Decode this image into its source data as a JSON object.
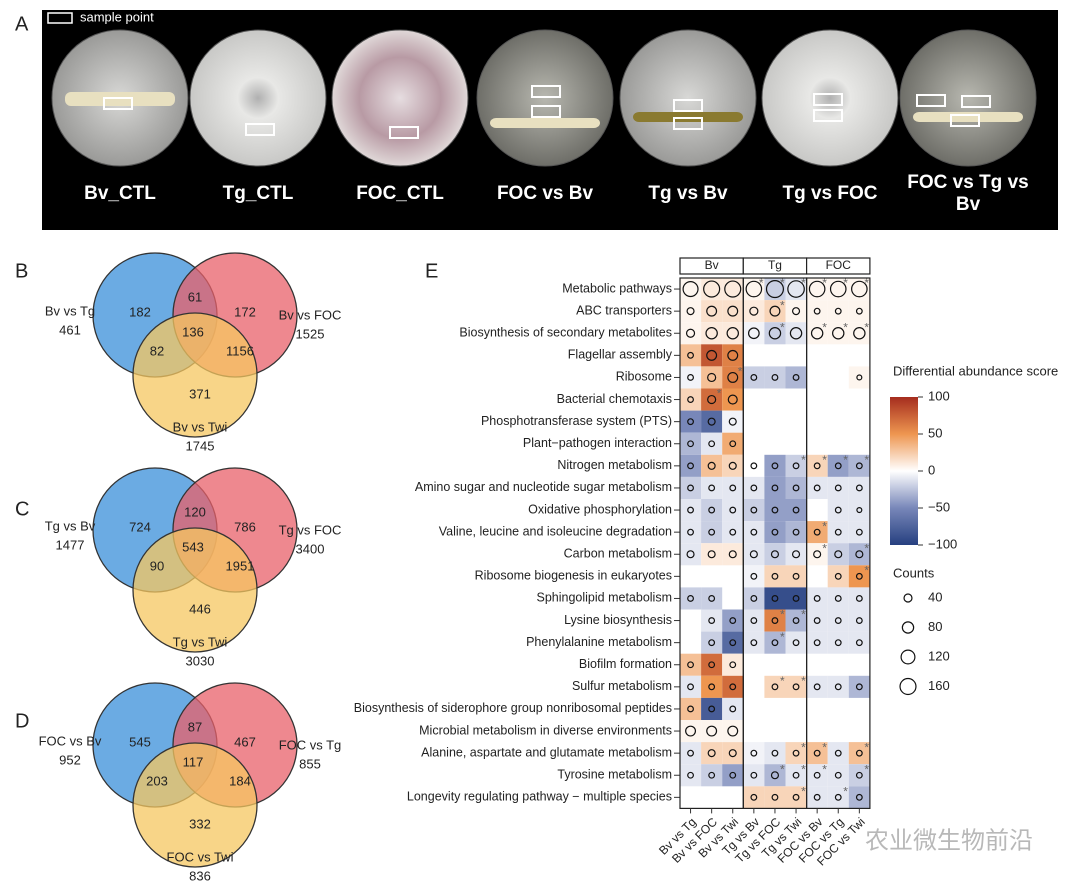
{
  "panel_labels": [
    "A",
    "B",
    "C",
    "D",
    "E"
  ],
  "plates": {
    "legend": "sample point",
    "labels": [
      "Bv_CTL",
      "Tg_CTL",
      "FOC_CTL",
      "FOC vs Bv",
      "Tg vs Bv",
      "Tg vs FOC",
      "FOC vs Tg vs Bv"
    ]
  },
  "venns": [
    {
      "sets": [
        {
          "name": "Bv vs Tg",
          "total": 461
        },
        {
          "name": "Bv vs FOC",
          "total": 1525
        },
        {
          "name": "Bv vs Twi",
          "total": 1745
        }
      ],
      "regions": [
        182,
        61,
        172,
        136,
        82,
        1156,
        371
      ]
    },
    {
      "sets": [
        {
          "name": "Tg vs Bv",
          "total": 1477
        },
        {
          "name": "Tg vs FOC",
          "total": 3400
        },
        {
          "name": "Tg vs Twi",
          "total": 3030
        }
      ],
      "regions": [
        724,
        120,
        786,
        543,
        90,
        1951,
        446
      ]
    },
    {
      "sets": [
        {
          "name": "FOC vs Bv",
          "total": 952
        },
        {
          "name": "FOC vs Tg",
          "total": 855
        },
        {
          "name": "FOC vs Twi",
          "total": 836
        }
      ],
      "regions": [
        545,
        87,
        467,
        117,
        203,
        184,
        332
      ]
    }
  ],
  "heatmap": {
    "groups": [
      "Bv",
      "Tg",
      "FOC"
    ],
    "columns": [
      "Bv vs Tg",
      "Bv vs FOC",
      "Bv vs Twi",
      "Tg vs Bv",
      "Tg vs FOC",
      "Tg vs Twi",
      "FOC vs Bv",
      "FOC vs Tg",
      "FOC vs Twi"
    ],
    "rows": [
      "Metabolic pathways",
      "ABC transporters",
      "Biosynthesis of secondary metabolites",
      "Flagellar assembly",
      "Ribosome",
      "Bacterial chemotaxis",
      "Phosphotransferase system (PTS)",
      "Plant−pathogen interaction",
      "Nitrogen metabolism",
      "Amino sugar and nucleotide sugar metabolism",
      "Oxidative phosphorylation",
      "Valine, leucine and isoleucine degradation",
      "Carbon metabolism",
      "Ribosome biogenesis in eukaryotes",
      "Sphingolipid metabolism",
      "Lysine biosynthesis",
      "Phenylalanine metabolism",
      "Biofilm formation",
      "Sulfur metabolism",
      "Biosynthesis of siderophore group nonribosomal peptides",
      "Microbial metabolism in diverse environments",
      "Alanine, aspartate and glutamate metabolism",
      "Tyrosine metabolism",
      "Longevity regulating pathway − multiple species"
    ],
    "values": [
      [
        5,
        10,
        10,
        5,
        -20,
        -10,
        5,
        5,
        5
      ],
      [
        5,
        15,
        15,
        10,
        20,
        5,
        5,
        5,
        5
      ],
      [
        5,
        10,
        10,
        -5,
        -20,
        -10,
        5,
        5,
        5
      ],
      [
        30,
        80,
        60,
        null,
        null,
        null,
        null,
        null,
        null
      ],
      [
        -5,
        30,
        60,
        -20,
        -20,
        -30,
        null,
        null,
        5
      ],
      [
        20,
        70,
        50,
        null,
        null,
        null,
        null,
        null,
        null
      ],
      [
        -50,
        -70,
        -5,
        null,
        null,
        null,
        null,
        null,
        null
      ],
      [
        -30,
        -10,
        40,
        null,
        null,
        null,
        null,
        null,
        null
      ],
      [
        -40,
        30,
        20,
        0,
        -40,
        -20,
        20,
        -40,
        -30
      ],
      [
        -20,
        -10,
        -10,
        -10,
        -40,
        -30,
        -10,
        -10,
        -10
      ],
      [
        -10,
        -20,
        -10,
        -20,
        -40,
        -40,
        null,
        -10,
        -10
      ],
      [
        -10,
        -20,
        -10,
        -10,
        -40,
        -30,
        40,
        -10,
        -10
      ],
      [
        -10,
        10,
        10,
        -10,
        -20,
        -10,
        5,
        -20,
        -30
      ],
      [
        null,
        null,
        null,
        -5,
        20,
        20,
        null,
        20,
        50
      ],
      [
        -20,
        -20,
        null,
        -20,
        -90,
        -90,
        -10,
        -10,
        -10
      ],
      [
        null,
        -10,
        -40,
        -10,
        60,
        -30,
        -10,
        -10,
        -10
      ],
      [
        null,
        -20,
        -70,
        -10,
        -30,
        -10,
        -10,
        -10,
        -10
      ],
      [
        30,
        70,
        10,
        null,
        null,
        null,
        null,
        null,
        null
      ],
      [
        -10,
        50,
        70,
        null,
        20,
        20,
        -10,
        -10,
        -30
      ],
      [
        30,
        -80,
        -10,
        null,
        null,
        null,
        null,
        null,
        null
      ],
      [
        5,
        5,
        5,
        null,
        null,
        null,
        null,
        null,
        null
      ],
      [
        -10,
        20,
        20,
        -5,
        -10,
        20,
        30,
        -10,
        30
      ],
      [
        -10,
        -20,
        -40,
        -10,
        -30,
        -10,
        -10,
        -10,
        -20
      ],
      [
        null,
        null,
        null,
        20,
        20,
        20,
        -10,
        -10,
        -30
      ]
    ],
    "counts": [
      [
        140,
        160,
        160,
        150,
        180,
        170,
        150,
        150,
        150
      ],
      [
        30,
        60,
        60,
        40,
        60,
        30,
        20,
        20,
        20
      ],
      [
        40,
        80,
        80,
        70,
        80,
        80,
        80,
        80,
        80
      ],
      [
        20,
        60,
        60,
        null,
        null,
        null,
        null,
        null,
        null
      ],
      [
        20,
        40,
        60,
        20,
        20,
        20,
        null,
        null,
        15
      ],
      [
        20,
        40,
        50,
        null,
        null,
        null,
        null,
        null,
        null
      ],
      [
        20,
        30,
        30,
        null,
        null,
        null,
        null,
        null,
        null
      ],
      [
        20,
        20,
        20,
        null,
        null,
        null,
        null,
        null,
        null
      ],
      [
        20,
        30,
        30,
        20,
        20,
        20,
        20,
        20,
        20
      ],
      [
        20,
        20,
        20,
        20,
        20,
        20,
        20,
        20,
        20
      ],
      [
        20,
        20,
        20,
        20,
        20,
        20,
        null,
        20,
        15
      ],
      [
        20,
        20,
        20,
        20,
        20,
        20,
        20,
        20,
        20
      ],
      [
        30,
        30,
        30,
        30,
        30,
        30,
        30,
        30,
        30
      ],
      [
        null,
        null,
        null,
        20,
        20,
        20,
        null,
        20,
        20
      ],
      [
        20,
        20,
        null,
        20,
        20,
        20,
        20,
        20,
        20
      ],
      [
        null,
        20,
        20,
        20,
        20,
        20,
        20,
        20,
        20
      ],
      [
        null,
        20,
        20,
        20,
        20,
        20,
        20,
        20,
        20
      ],
      [
        20,
        20,
        20,
        null,
        null,
        null,
        null,
        null,
        null
      ],
      [
        20,
        20,
        20,
        null,
        20,
        20,
        20,
        20,
        20
      ],
      [
        20,
        20,
        20,
        null,
        null,
        null,
        null,
        null,
        null
      ],
      [
        60,
        60,
        60,
        null,
        null,
        null,
        null,
        null,
        null
      ],
      [
        20,
        30,
        30,
        20,
        20,
        20,
        20,
        20,
        20
      ],
      [
        20,
        20,
        20,
        20,
        30,
        20,
        20,
        20,
        20
      ],
      [
        null,
        null,
        null,
        20,
        20,
        20,
        20,
        20,
        20
      ]
    ],
    "significant": [
      [
        0,
        3
      ],
      [
        0,
        4
      ],
      [
        0,
        5
      ],
      [
        0,
        6
      ],
      [
        0,
        7
      ],
      [
        0,
        8
      ],
      [
        1,
        4
      ],
      [
        2,
        4
      ],
      [
        2,
        6
      ],
      [
        2,
        7
      ],
      [
        2,
        8
      ],
      [
        4,
        2
      ],
      [
        5,
        1
      ],
      [
        8,
        5
      ],
      [
        8,
        6
      ],
      [
        8,
        7
      ],
      [
        8,
        8
      ],
      [
        11,
        6
      ],
      [
        12,
        6
      ],
      [
        12,
        8
      ],
      [
        13,
        8
      ],
      [
        15,
        4
      ],
      [
        15,
        5
      ],
      [
        16,
        4
      ],
      [
        18,
        4
      ],
      [
        18,
        5
      ],
      [
        21,
        5
      ],
      [
        21,
        6
      ],
      [
        21,
        8
      ],
      [
        22,
        4
      ],
      [
        22,
        5
      ],
      [
        22,
        6
      ],
      [
        22,
        8
      ],
      [
        23,
        5
      ],
      [
        23,
        7
      ]
    ],
    "star": "*",
    "colorbar": {
      "title": "Differential abundance score",
      "ticks": [
        100,
        50,
        0,
        {
          "value": -50,
          "label": "−50"
        },
        {
          "value": -100,
          "label": "−100"
        }
      ]
    },
    "size_legend": {
      "title": "Counts",
      "ticks": [
        40,
        80,
        120,
        160
      ]
    }
  },
  "watermark": "农业微生物前沿"
}
